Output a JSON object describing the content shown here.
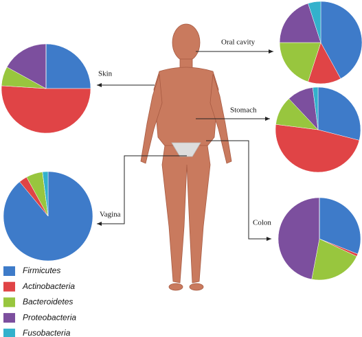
{
  "legend": {
    "labels": [
      "Firmicutes",
      "Actinobacteria",
      "Bacteroidetes",
      "Proteobacteria",
      "Fusobacteria"
    ],
    "colors": [
      "#3e7bc9",
      "#e04446",
      "#98c63e",
      "#7c4f9e",
      "#33b1cc"
    ]
  },
  "chart_data": [
    {
      "type": "pie",
      "title": "Skin",
      "values": [
        25,
        51,
        7,
        17,
        0
      ]
    },
    {
      "type": "pie",
      "title": "Oral cavity",
      "values": [
        42,
        13,
        20,
        20,
        5
      ]
    },
    {
      "type": "pie",
      "title": "Stomach",
      "values": [
        29,
        48,
        11,
        10,
        2
      ]
    },
    {
      "type": "pie",
      "title": "Colon",
      "values": [
        31,
        1,
        21,
        47,
        0
      ]
    },
    {
      "type": "pie",
      "title": "Vagina",
      "values": [
        89,
        3,
        6,
        0,
        2
      ]
    }
  ]
}
